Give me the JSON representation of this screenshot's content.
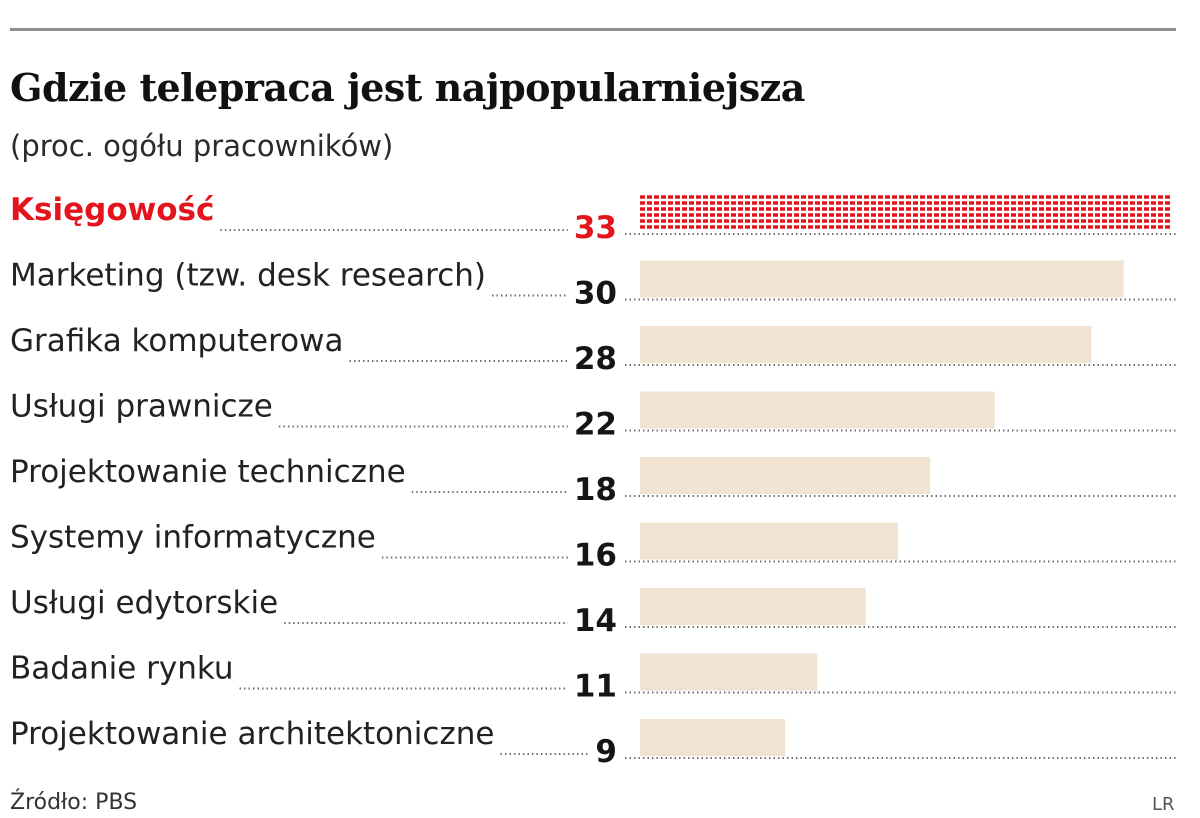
{
  "header": {
    "title": "Gdzie telepraca jest najpopularniejsza",
    "subtitle": "(proc. ogółu pracowników)"
  },
  "footer": {
    "source": "Źródło: PBS",
    "badge": "LR"
  },
  "colors": {
    "highlight": "#e3141b",
    "bar": "#f1e3d2",
    "leader_dots": "#6f6f6f",
    "rule": "#8d8d8d"
  },
  "chart_data": {
    "type": "bar",
    "orientation": "horizontal",
    "categories": [
      "Księgowość",
      "Marketing (tzw. desk research)",
      "Grafika komputerowa",
      "Usługi prawnicze",
      "Projektowanie techniczne",
      "Systemy informatyczne",
      "Usługi edytorskie",
      "Badanie rynku",
      "Projektowanie architektoniczne"
    ],
    "values": [
      33,
      30,
      28,
      22,
      18,
      16,
      14,
      11,
      9
    ],
    "highlight_index": 0,
    "xlim": [
      0,
      33
    ],
    "grid": false,
    "legend": "none"
  }
}
